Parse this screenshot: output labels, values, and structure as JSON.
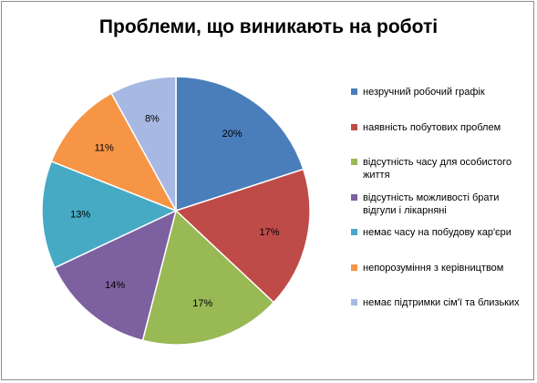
{
  "chart_data": {
    "type": "pie",
    "title": "Проблеми, що виникають на роботі",
    "slices": [
      {
        "name": "незручний робочий графік",
        "value": 20,
        "label": "20%",
        "color": "#4a7ebb"
      },
      {
        "name": "наявність побутових проблем",
        "value": 17,
        "label": "17%",
        "color": "#be4b48"
      },
      {
        "name": "відсутність часу для особистого життя",
        "value": 17,
        "label": "17%",
        "color": "#98b954"
      },
      {
        "name": "відсутність можливості брати відгули і лікарняні",
        "value": 14,
        "label": "14%",
        "color": "#7d60a0"
      },
      {
        "name": "немає часу на побудову кар'єри",
        "value": 13,
        "label": "13%",
        "color": "#46aac5"
      },
      {
        "name": "непорозуміння з керівництвом",
        "value": 11,
        "label": "11%",
        "color": "#f69546"
      },
      {
        "name": "немає підтримки сім'ї та близьких",
        "value": 8,
        "label": "8%",
        "color": "#a7b9e3"
      }
    ],
    "legend_position": "right",
    "start_angle": "12 o'clock",
    "direction": "clockwise"
  }
}
